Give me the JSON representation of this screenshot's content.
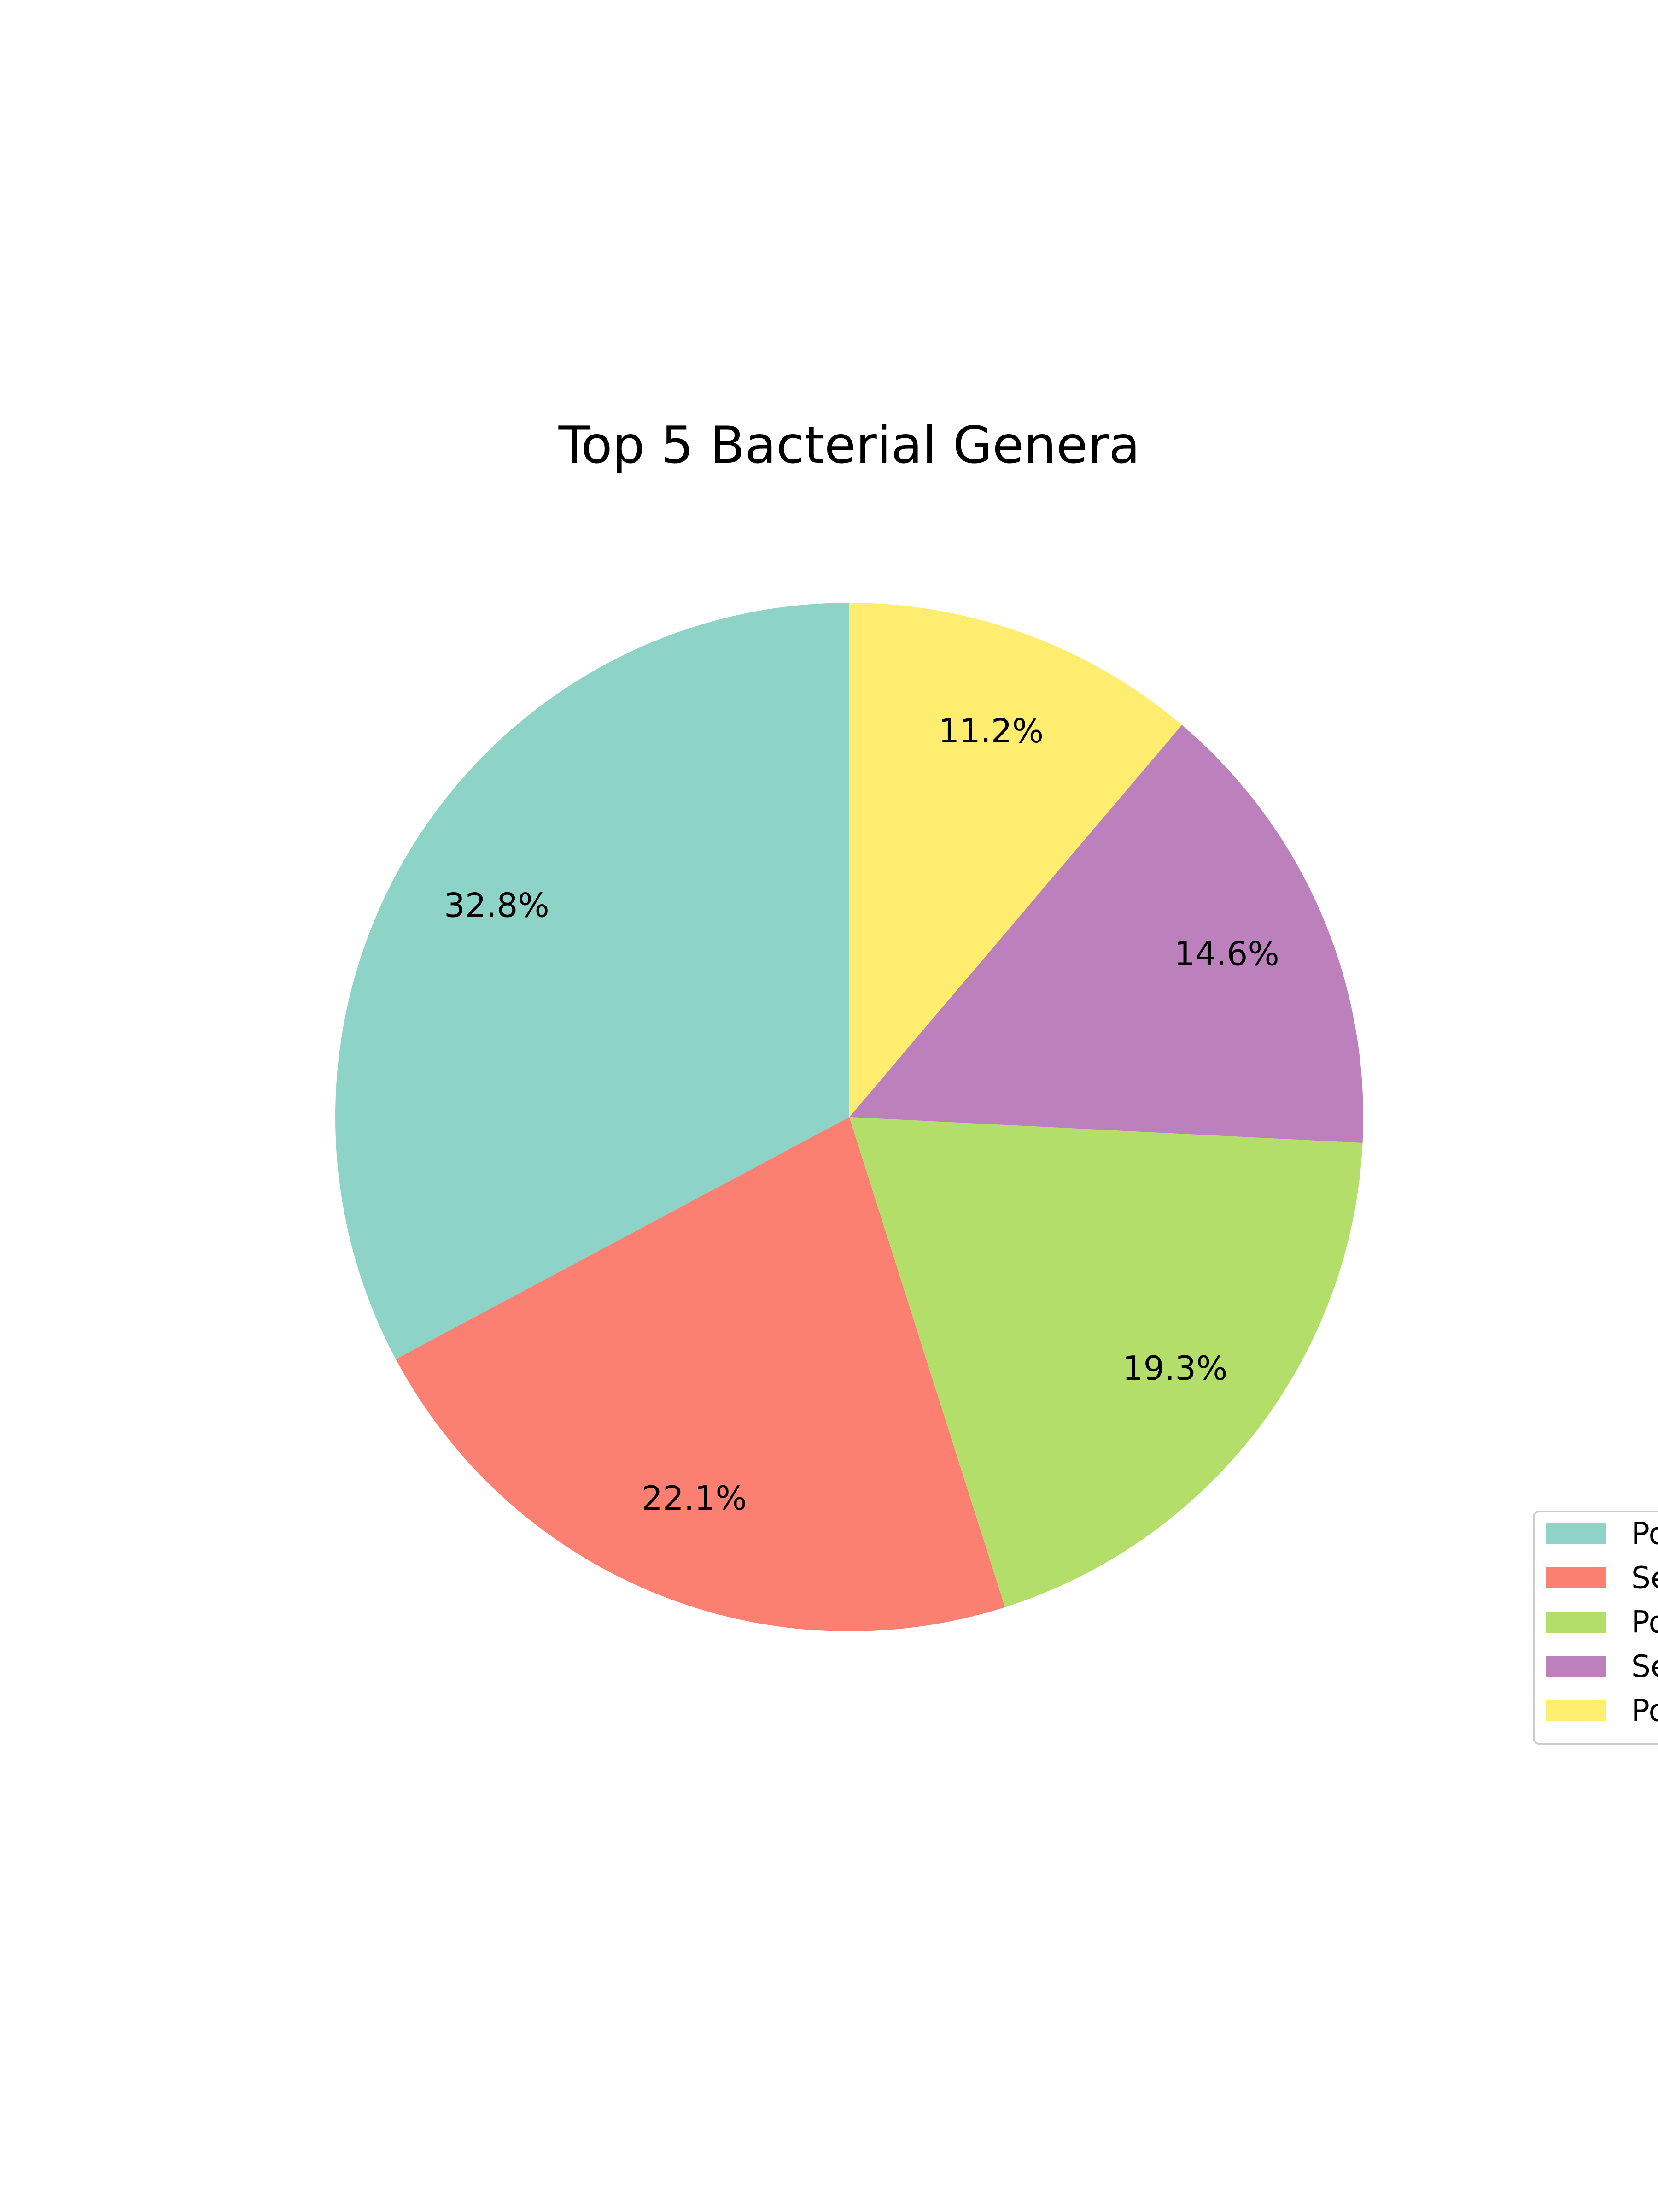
{
  "chart_data": {
    "type": "pie",
    "title": "Top 5 Bacterial Genera",
    "start_angle_deg": 90,
    "direction": "counterclockwise",
    "legend_position": "right",
    "slices": [
      {
        "label": "Po",
        "value": 32.8,
        "pct_label": "32.8%",
        "color": "#8dd3c7"
      },
      {
        "label": "Se",
        "value": 22.1,
        "pct_label": "22.1%",
        "color": "#fb8072"
      },
      {
        "label": "Po",
        "value": 19.3,
        "pct_label": "19.3%",
        "color": "#b3de69"
      },
      {
        "label": "Se",
        "value": 14.6,
        "pct_label": "14.6%",
        "color": "#bc80bd"
      },
      {
        "label": "Po",
        "value": 11.2,
        "pct_label": "11.2%",
        "color": "#ffed6f"
      }
    ]
  }
}
